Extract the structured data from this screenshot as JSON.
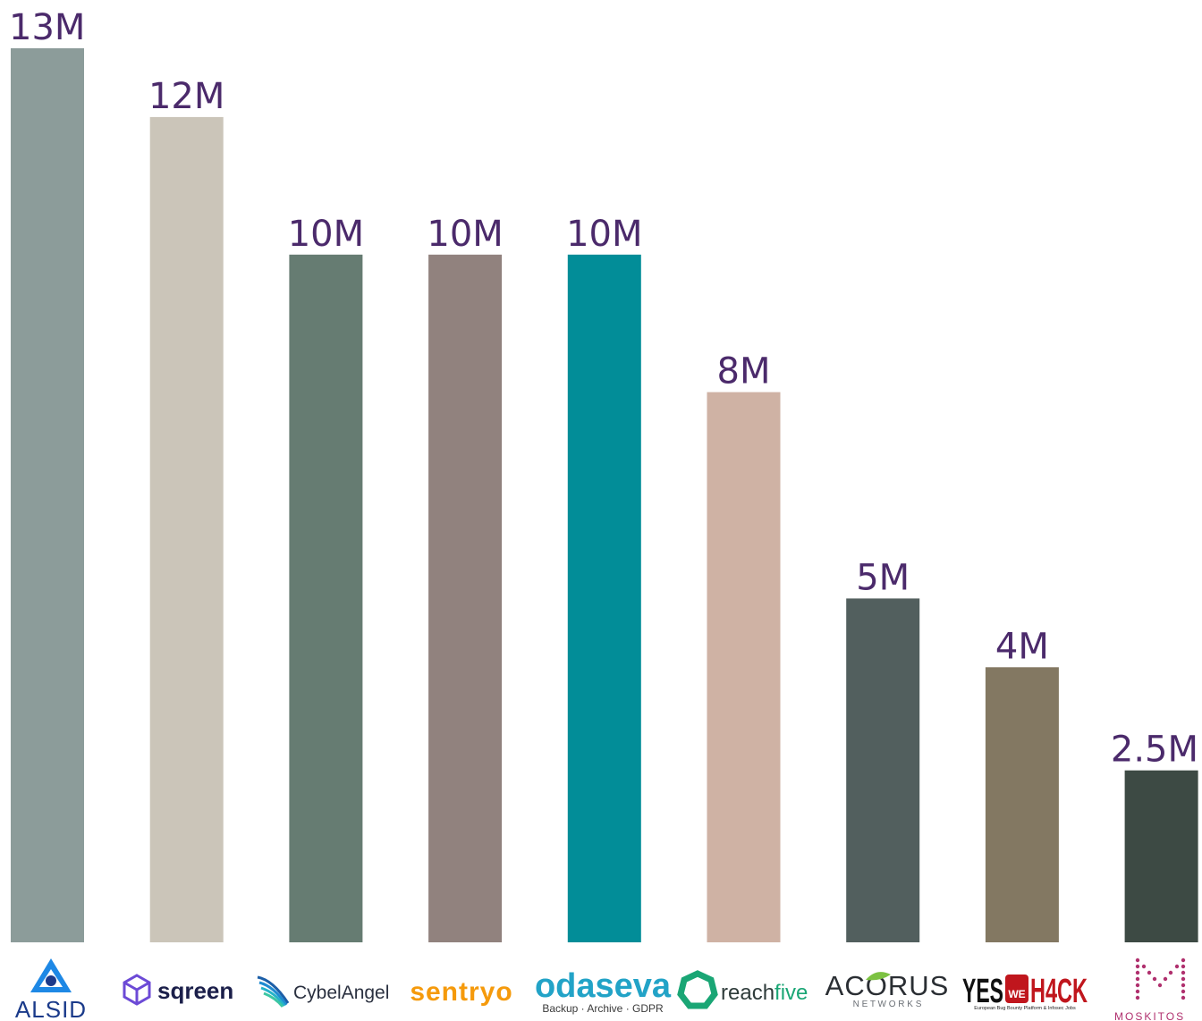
{
  "chart_data": {
    "type": "bar",
    "categories": [
      "ALSID",
      "sqreen",
      "CybelAngel",
      "sentryo",
      "odaseva",
      "reachfive",
      "ACORUS",
      "YES WE H4CK",
      "MOSKITOS"
    ],
    "values": [
      13,
      12,
      10,
      10,
      10,
      8,
      5,
      4,
      2.5
    ],
    "value_labels": [
      "13M",
      "12M",
      "10M",
      "10M",
      "10M",
      "8M",
      "5M",
      "4M",
      "2.5M"
    ],
    "colors": [
      "#8c9c9a",
      "#cbc5b9",
      "#667c72",
      "#91827e",
      "#028d98",
      "#cfb2a4",
      "#525f5e",
      "#837862",
      "#3d4a44"
    ],
    "ylim": [
      0,
      13
    ],
    "grid": false,
    "legend": "none",
    "label_color": "#4b2a6b"
  },
  "logos": {
    "alsid": "ALSID",
    "sqreen": "sqreen",
    "cybelangel": "CybelAngel",
    "sentryo": "sentryo",
    "odaseva": "odaseva",
    "odaseva_tagline": "Backup · Archive · GDPR",
    "reachfive_a": "reach",
    "reachfive_b": "five",
    "acorus": "ACORUS",
    "acorus_sub": "N E T W O R K S",
    "yeswehack_a": "YES",
    "yeswehack_b": "H4CK",
    "yeswehack_we": "WE",
    "yeswehack_tagline": "European Bug Bounty Platform & Infosec Jobs",
    "moskitos": "MOSKITOS"
  }
}
